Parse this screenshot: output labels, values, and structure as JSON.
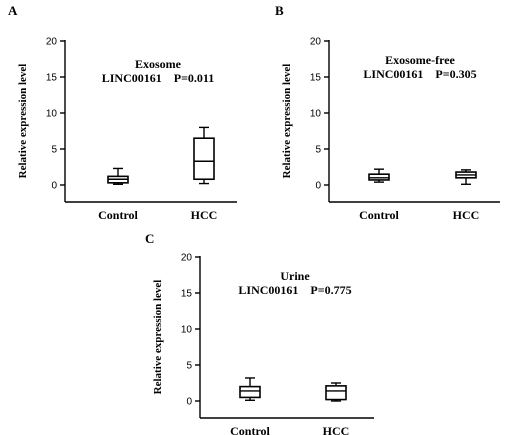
{
  "chart_data": [
    {
      "type": "box",
      "panel": "A",
      "title_line1": "Exosome",
      "title_line2": "LINC00161    P=0.011",
      "ylabel": "Relative expression level",
      "ylim": [
        0,
        20
      ],
      "yticks": [
        0,
        5,
        10,
        15,
        20
      ],
      "categories": [
        "Control",
        "HCC"
      ],
      "boxes": [
        {
          "min": 0.1,
          "q1": 0.3,
          "median": 0.8,
          "q3": 1.2,
          "max": 2.3
        },
        {
          "min": 0.2,
          "q1": 0.8,
          "median": 3.3,
          "q3": 6.5,
          "max": 8.0
        }
      ]
    },
    {
      "type": "box",
      "panel": "B",
      "title_line1": "Exosome-free",
      "title_line2": "LINC00161    P=0.305",
      "ylabel": "Relative expression level",
      "ylim": [
        0,
        20
      ],
      "yticks": [
        0,
        5,
        10,
        15,
        20
      ],
      "categories": [
        "Control",
        "HCC"
      ],
      "boxes": [
        {
          "min": 0.4,
          "q1": 0.7,
          "median": 1.0,
          "q3": 1.5,
          "max": 2.2
        },
        {
          "min": 0.1,
          "q1": 1.0,
          "median": 1.4,
          "q3": 1.8,
          "max": 2.1
        }
      ]
    },
    {
      "type": "box",
      "panel": "C",
      "title_line1": "Urine",
      "title_line2": "LINC00161    P=0.775",
      "ylabel": "Relative expression level",
      "ylim": [
        0,
        20
      ],
      "yticks": [
        0,
        5,
        10,
        15,
        20
      ],
      "categories": [
        "Control",
        "HCC"
      ],
      "boxes": [
        {
          "min": 0.1,
          "q1": 0.5,
          "median": 1.4,
          "q3": 2.0,
          "max": 3.2
        },
        {
          "min": 0.0,
          "q1": 0.2,
          "median": 1.4,
          "q3": 2.1,
          "max": 2.5
        }
      ]
    }
  ]
}
